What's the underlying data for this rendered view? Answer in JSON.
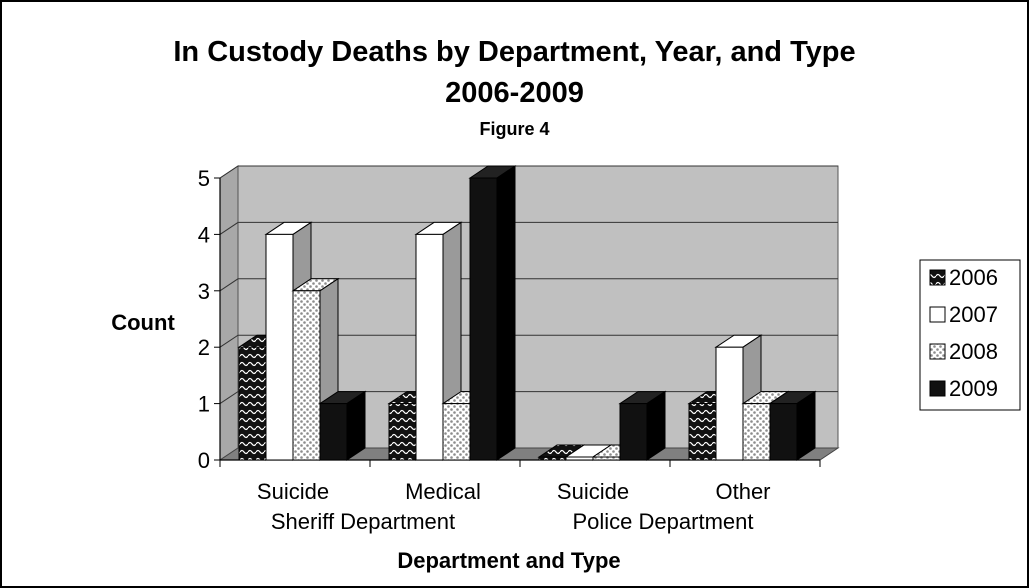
{
  "title_line1": "In Custody Deaths by Department, Year, and Type",
  "title_line2": "2006-2009",
  "figure_label": "Figure 4",
  "chart_data": {
    "type": "bar",
    "title": "In Custody Deaths by Department, Year, and Type 2006-2009",
    "subtitle": "Figure 4",
    "xlabel": "Department and Type",
    "ylabel": "Count",
    "categories": [
      "Suicide",
      "Medical",
      "Suicide",
      "Other"
    ],
    "groups": [
      "Sheriff Department",
      "Police Department"
    ],
    "series": [
      {
        "name": "2006",
        "values": [
          2,
          1,
          0,
          1
        ],
        "pattern": "wave"
      },
      {
        "name": "2007",
        "values": [
          4,
          4,
          0,
          2
        ],
        "pattern": "white"
      },
      {
        "name": "2008",
        "values": [
          3,
          1,
          0,
          1
        ],
        "pattern": "dots"
      },
      {
        "name": "2009",
        "values": [
          1,
          5,
          1,
          1
        ],
        "pattern": "black"
      }
    ],
    "ylim": [
      0,
      5
    ],
    "yticks": [
      0,
      1,
      2,
      3,
      4,
      5
    ],
    "grid": true,
    "legend_position": "right",
    "three_d": true,
    "colors": {
      "wall": "#c0c0c0",
      "floor": "#808080",
      "bar_dark": "#111111",
      "bar_light": "#ffffff",
      "side": "#9a9a9a"
    }
  }
}
